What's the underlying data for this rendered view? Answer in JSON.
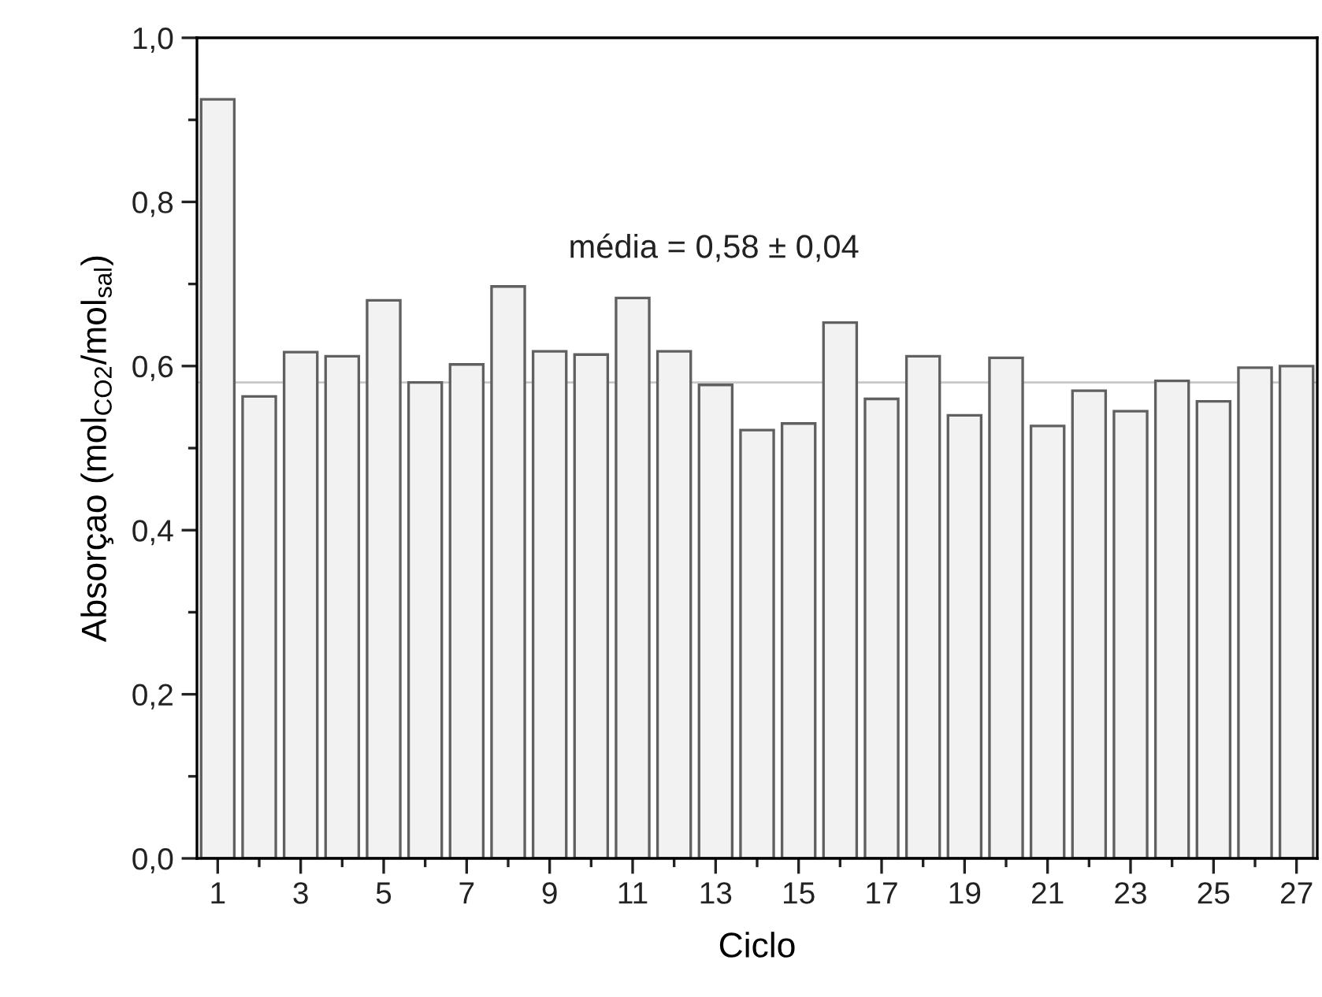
{
  "chart_data": {
    "type": "bar",
    "xlabel": "Ciclo",
    "ylabel": "Absorçao (mol$_{CO2}$/mol$_{sal}$)",
    "categories": [
      "1",
      null,
      "3",
      null,
      "5",
      null,
      "7",
      null,
      "9",
      null,
      "11",
      null,
      "13",
      null,
      "15",
      null,
      "17",
      null,
      "19",
      null,
      "21",
      null,
      "23",
      null,
      "25",
      null,
      "27"
    ],
    "values": [
      0.925,
      0.563,
      0.617,
      0.612,
      0.68,
      0.58,
      0.602,
      0.697,
      0.618,
      0.614,
      0.683,
      0.618,
      0.577,
      0.522,
      0.53,
      0.653,
      0.56,
      0.612,
      0.54,
      0.61,
      0.527,
      0.57,
      0.545,
      0.582,
      0.557,
      0.598,
      0.6
    ],
    "color": "#f2f2f2",
    "ylim": [
      0,
      1
    ],
    "yticks": [
      {
        "value": 0,
        "label": "0,0"
      },
      {
        "value": 0.1,
        "label": null
      },
      {
        "value": 0.2,
        "label": "0,2"
      },
      {
        "value": 0.3,
        "label": null
      },
      {
        "value": 0.4,
        "label": "0,4"
      },
      {
        "value": 0.5,
        "label": null
      },
      {
        "value": 0.6,
        "label": "0,6"
      },
      {
        "value": 0.7,
        "label": null
      },
      {
        "value": 0.8,
        "label": "0,8"
      },
      {
        "value": 0.9,
        "label": null
      },
      {
        "value": 1.0,
        "label": "1,0"
      }
    ],
    "ref_lines": [
      {
        "axis": "y",
        "value": 0.58,
        "color": "#c8c8c8"
      }
    ],
    "annotations": [
      "média = 0,58 ± 0,04"
    ],
    "grid": false,
    "legend": false
  }
}
